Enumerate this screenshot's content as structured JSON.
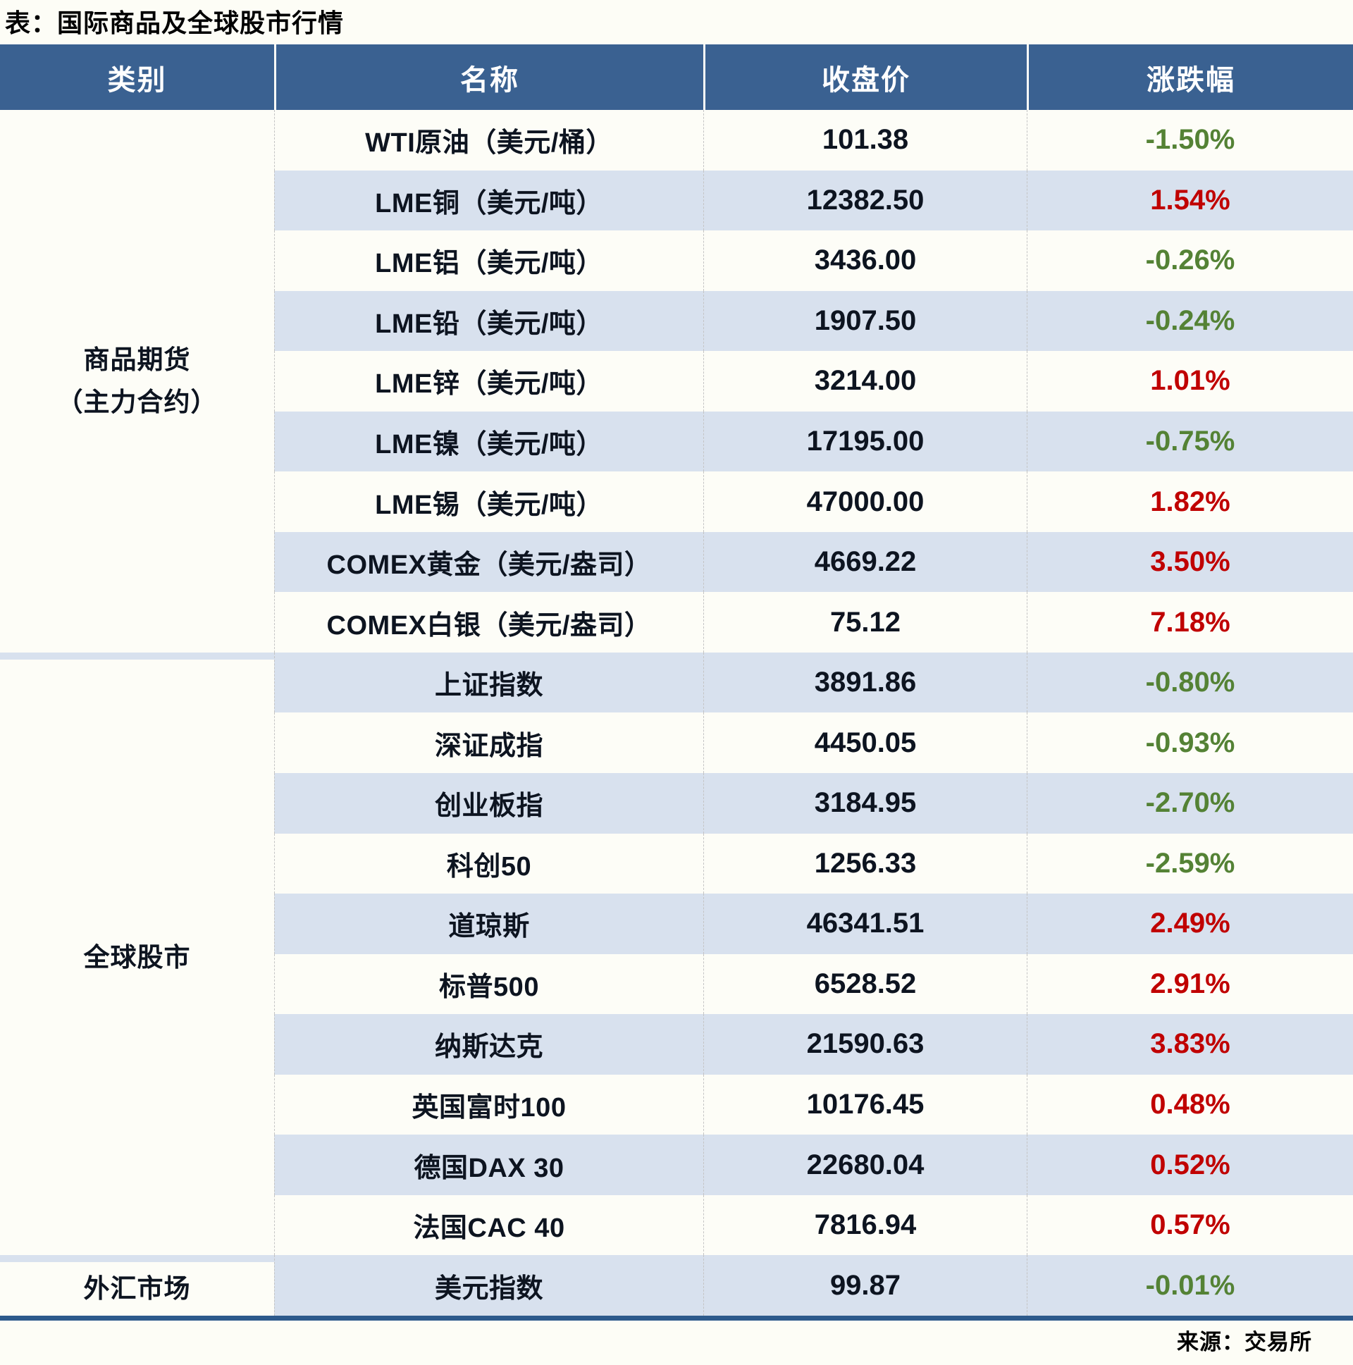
{
  "title": "表：国际商品及全球股市行情",
  "source": "来源：交易所",
  "colors": {
    "header_bg": "#3a6191",
    "row_alt_bg": "#d8e1ee",
    "row_bg": "#fdfdf7",
    "positive_text": "#c00000",
    "negative_text": "#548235",
    "bottom_rule": "#2d5a8c",
    "header_text": "#ffffff",
    "body_text": "#0d1420"
  },
  "chart_data": {
    "type": "table",
    "title": "表：国际商品及全球股市行情",
    "columns": [
      "类别",
      "名称",
      "收盘价",
      "涨跌幅"
    ],
    "sections": [
      {
        "category_lines": [
          "商品期货",
          "（主力合约）"
        ],
        "rows": [
          {
            "name": "WTI原油（美元/桶）",
            "close": "101.38",
            "change": "-1.50%",
            "direction": "down"
          },
          {
            "name": "LME铜（美元/吨）",
            "close": "12382.50",
            "change": "1.54%",
            "direction": "up"
          },
          {
            "name": "LME铝（美元/吨）",
            "close": "3436.00",
            "change": "-0.26%",
            "direction": "down"
          },
          {
            "name": "LME铅（美元/吨）",
            "close": "1907.50",
            "change": "-0.24%",
            "direction": "down"
          },
          {
            "name": "LME锌（美元/吨）",
            "close": "3214.00",
            "change": "1.01%",
            "direction": "up"
          },
          {
            "name": "LME镍（美元/吨）",
            "close": "17195.00",
            "change": "-0.75%",
            "direction": "down"
          },
          {
            "name": "LME锡（美元/吨）",
            "close": "47000.00",
            "change": "1.82%",
            "direction": "up"
          },
          {
            "name": "COMEX黄金（美元/盎司）",
            "close": "4669.22",
            "change": "3.50%",
            "direction": "up"
          },
          {
            "name": "COMEX白银（美元/盎司）",
            "close": "75.12",
            "change": "7.18%",
            "direction": "up"
          }
        ]
      },
      {
        "category_lines": [
          "全球股市"
        ],
        "rows": [
          {
            "name": "上证指数",
            "close": "3891.86",
            "change": "-0.80%",
            "direction": "down"
          },
          {
            "name": "深证成指",
            "close": "4450.05",
            "change": "-0.93%",
            "direction": "down"
          },
          {
            "name": "创业板指",
            "close": "3184.95",
            "change": "-2.70%",
            "direction": "down"
          },
          {
            "name": "科创50",
            "close": "1256.33",
            "change": "-2.59%",
            "direction": "down"
          },
          {
            "name": "道琼斯",
            "close": "46341.51",
            "change": "2.49%",
            "direction": "up"
          },
          {
            "name": "标普500",
            "close": "6528.52",
            "change": "2.91%",
            "direction": "up"
          },
          {
            "name": "纳斯达克",
            "close": "21590.63",
            "change": "3.83%",
            "direction": "up"
          },
          {
            "name": "英国富时100",
            "close": "10176.45",
            "change": "0.48%",
            "direction": "up"
          },
          {
            "name": "德国DAX 30",
            "close": "22680.04",
            "change": "0.52%",
            "direction": "up"
          },
          {
            "name": "法国CAC 40",
            "close": "7816.94",
            "change": "0.57%",
            "direction": "up"
          }
        ]
      },
      {
        "category_lines": [
          "外汇市场"
        ],
        "rows": [
          {
            "name": "美元指数",
            "close": "99.87",
            "change": "-0.01%",
            "direction": "down"
          }
        ]
      }
    ]
  }
}
